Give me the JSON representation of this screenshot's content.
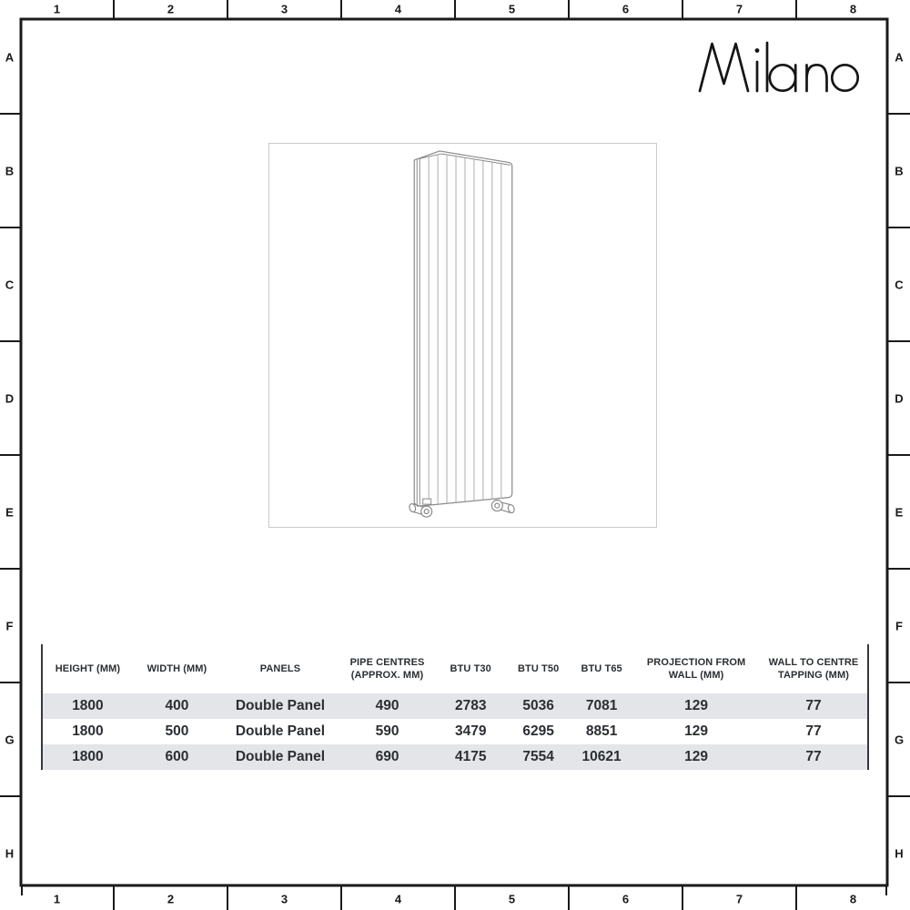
{
  "brand": {
    "logo_text": "Milano"
  },
  "ruler": {
    "columns": [
      "1",
      "2",
      "3",
      "4",
      "5",
      "6",
      "7",
      "8"
    ],
    "rows": [
      "A",
      "B",
      "C",
      "D",
      "E",
      "F",
      "G",
      "H"
    ]
  },
  "spec_table": {
    "columns": [
      "HEIGHT (MM)",
      "WIDTH (MM)",
      "PANELS",
      "PIPE CENTRES (APPROX. MM)",
      "BTU T30",
      "BTU T50",
      "BTU T65",
      "PROJECTION FROM WALL (MM)",
      "WALL TO CENTRE TAPPING (MM)"
    ],
    "rows": [
      [
        "1800",
        "400",
        "Double Panel",
        "490",
        "2783",
        "5036",
        "7081",
        "129",
        "77"
      ],
      [
        "1800",
        "500",
        "Double Panel",
        "590",
        "3479",
        "6295",
        "8851",
        "129",
        "77"
      ],
      [
        "1800",
        "600",
        "Double Panel",
        "690",
        "4175",
        "7554",
        "10621",
        "129",
        "77"
      ]
    ]
  },
  "colors": {
    "frame_ink": "#1a1a1a",
    "table_text": "#2b2e33",
    "table_stripe": "#e3e5e8",
    "table_rail": "#35383d",
    "image_box_border": "#c9cacb",
    "drawing_line": "#8a8a8a",
    "drawing_flute": "#b3b5b7"
  }
}
